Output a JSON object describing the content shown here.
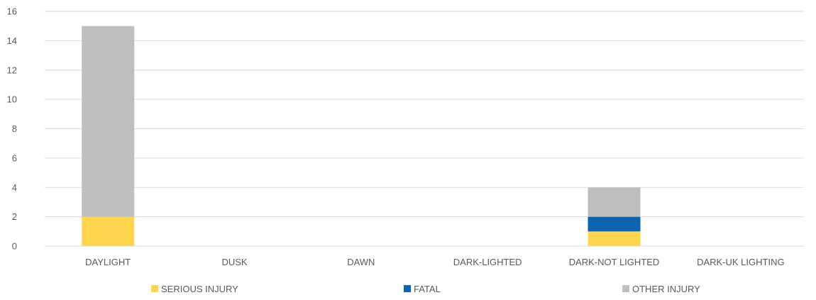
{
  "chart_data": {
    "type": "bar",
    "stacked": true,
    "categories": [
      "DAYLIGHT",
      "DUSK",
      "DAWN",
      "DARK-LIGHTED",
      "DARK-NOT LIGHTED",
      "DARK-UK LIGHTING"
    ],
    "series": [
      {
        "name": "SERIOUS INJURY",
        "color": "#FFD550",
        "values": [
          2,
          0,
          0,
          0,
          1,
          0
        ]
      },
      {
        "name": "FATAL",
        "color": "#0E63AE",
        "values": [
          0,
          0,
          0,
          0,
          1,
          0
        ]
      },
      {
        "name": "OTHER INJURY",
        "color": "#BFBFBF",
        "values": [
          13,
          0,
          0,
          0,
          2,
          0
        ]
      }
    ],
    "ylim": [
      0,
      16
    ],
    "yticks": [
      0,
      2,
      4,
      6,
      8,
      10,
      12,
      14,
      16
    ],
    "grid": true,
    "legend_position": "bottom"
  }
}
